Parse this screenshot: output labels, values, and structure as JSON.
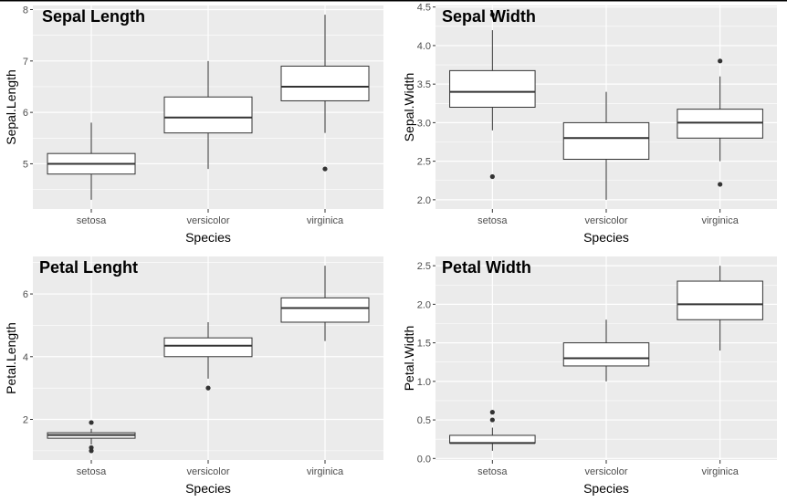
{
  "colors": {
    "panel_bg": "#ebebeb",
    "grid": "#ffffff",
    "box_line": "#333333",
    "box_fill": "#ffffff"
  },
  "chart_data": [
    {
      "type": "boxplot",
      "title": "Sepal Length",
      "xlabel": "Species",
      "ylabel": "Sepal.Length",
      "categories": [
        "setosa",
        "versicolor",
        "virginica"
      ],
      "ylim": [
        4.12,
        8.08
      ],
      "yticks": [
        5,
        6,
        7,
        8
      ],
      "ytick_labels": [
        "5",
        "6",
        "7",
        "8"
      ],
      "grid": true,
      "boxes": [
        {
          "q1": 4.8,
          "median": 5.0,
          "q3": 5.2,
          "lower": 4.3,
          "upper": 5.8,
          "outliers": []
        },
        {
          "q1": 5.6,
          "median": 5.9,
          "q3": 6.3,
          "lower": 4.9,
          "upper": 7.0,
          "outliers": []
        },
        {
          "q1": 6.225,
          "median": 6.5,
          "q3": 6.9,
          "lower": 5.6,
          "upper": 7.9,
          "outliers": [
            4.9
          ]
        }
      ]
    },
    {
      "type": "boxplot",
      "title": "Sepal Width",
      "xlabel": "Species",
      "ylabel": "Sepal.Width",
      "categories": [
        "setosa",
        "versicolor",
        "virginica"
      ],
      "ylim": [
        1.88,
        4.52
      ],
      "yticks": [
        2.0,
        2.5,
        3.0,
        3.5,
        4.0,
        4.5
      ],
      "ytick_labels": [
        "2.0",
        "2.5",
        "3.0",
        "3.5",
        "4.0",
        "4.5"
      ],
      "grid": true,
      "boxes": [
        {
          "q1": 3.2,
          "median": 3.4,
          "q3": 3.675,
          "lower": 2.9,
          "upper": 4.2,
          "outliers": [
            2.3,
            4.4
          ]
        },
        {
          "q1": 2.525,
          "median": 2.8,
          "q3": 3.0,
          "lower": 2.0,
          "upper": 3.4,
          "outliers": []
        },
        {
          "q1": 2.8,
          "median": 3.0,
          "q3": 3.175,
          "lower": 2.5,
          "upper": 3.6,
          "outliers": [
            2.2,
            3.8
          ]
        }
      ]
    },
    {
      "type": "boxplot",
      "title": "Petal Lenght",
      "xlabel": "Species",
      "ylabel": "Petal.Length",
      "categories": [
        "setosa",
        "versicolor",
        "virginica"
      ],
      "ylim": [
        0.705,
        7.195
      ],
      "yticks": [
        2,
        4,
        6
      ],
      "ytick_labels": [
        "2",
        "4",
        "6"
      ],
      "grid": true,
      "boxes": [
        {
          "q1": 1.4,
          "median": 1.5,
          "q3": 1.575,
          "lower": 1.2,
          "upper": 1.7,
          "outliers": [
            1.0,
            1.1,
            1.9
          ]
        },
        {
          "q1": 4.0,
          "median": 4.35,
          "q3": 4.6,
          "lower": 3.3,
          "upper": 5.1,
          "outliers": [
            3.0
          ]
        },
        {
          "q1": 5.1,
          "median": 5.55,
          "q3": 5.875,
          "lower": 4.5,
          "upper": 6.9,
          "outliers": []
        }
      ]
    },
    {
      "type": "boxplot",
      "title": "Petal Width",
      "xlabel": "Species",
      "ylabel": "Petal.Width",
      "categories": [
        "setosa",
        "versicolor",
        "virginica"
      ],
      "ylim": [
        -0.02,
        2.62
      ],
      "yticks": [
        0.0,
        0.5,
        1.0,
        1.5,
        2.0,
        2.5
      ],
      "ytick_labels": [
        "0.0",
        "0.5",
        "1.0",
        "1.5",
        "2.0",
        "2.5"
      ],
      "grid": true,
      "boxes": [
        {
          "q1": 0.2,
          "median": 0.2,
          "q3": 0.3,
          "lower": 0.1,
          "upper": 0.4,
          "outliers": [
            0.5,
            0.6
          ]
        },
        {
          "q1": 1.2,
          "median": 1.3,
          "q3": 1.5,
          "lower": 1.0,
          "upper": 1.8,
          "outliers": []
        },
        {
          "q1": 1.8,
          "median": 2.0,
          "q3": 2.3,
          "lower": 1.4,
          "upper": 2.5,
          "outliers": []
        }
      ]
    }
  ]
}
